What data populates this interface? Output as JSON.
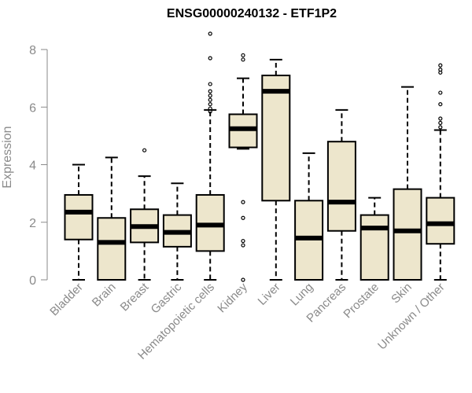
{
  "chart_data": {
    "type": "boxplot",
    "title": "ENSG00000240132 - ETF1P2",
    "ylabel": "Expression",
    "xlabel": "",
    "ylim": [
      0,
      8.6
    ],
    "yticks": [
      0,
      2,
      4,
      6,
      8
    ],
    "box_fill": "#ede6cc",
    "box_stroke": "#000000",
    "axis_color": "#8a8a8a",
    "categories": [
      "Bladder",
      "Brain",
      "Breast",
      "Gastric",
      "Hematopoietic cells",
      "Kidney",
      "Liver",
      "Lung",
      "Pancreas",
      "Prostate",
      "Skin",
      "Unknown / Other"
    ],
    "boxes": [
      {
        "whislo": 0.0,
        "q1": 1.4,
        "med": 2.35,
        "q3": 2.95,
        "whishi": 4.0,
        "fliers": []
      },
      {
        "whislo": 0.0,
        "q1": 0.0,
        "med": 1.3,
        "q3": 2.15,
        "whishi": 4.25,
        "fliers": []
      },
      {
        "whislo": 0.0,
        "q1": 1.3,
        "med": 1.85,
        "q3": 2.45,
        "whishi": 3.6,
        "fliers": [
          4.5
        ]
      },
      {
        "whislo": 0.0,
        "q1": 1.15,
        "med": 1.65,
        "q3": 2.25,
        "whishi": 3.35,
        "fliers": []
      },
      {
        "whislo": 0.0,
        "q1": 1.0,
        "med": 1.9,
        "q3": 2.95,
        "whishi": 5.9,
        "fliers": [
          5.85,
          5.95,
          6.1,
          6.25,
          6.4,
          6.55,
          6.8,
          7.7,
          8.55
        ]
      },
      {
        "whislo": 4.55,
        "q1": 4.6,
        "med": 5.25,
        "q3": 5.75,
        "whishi": 7.0,
        "fliers": [
          0.0,
          1.2,
          1.35,
          2.15,
          2.7,
          7.65,
          7.8
        ]
      },
      {
        "whislo": 0.0,
        "q1": 2.75,
        "med": 6.55,
        "q3": 7.1,
        "whishi": 7.65,
        "fliers": []
      },
      {
        "whislo": 0.0,
        "q1": 0.0,
        "med": 1.45,
        "q3": 2.75,
        "whishi": 4.4,
        "fliers": []
      },
      {
        "whislo": 0.0,
        "q1": 1.7,
        "med": 2.7,
        "q3": 4.8,
        "whishi": 5.9,
        "fliers": []
      },
      {
        "whislo": 0.0,
        "q1": 0.0,
        "med": 1.8,
        "q3": 2.25,
        "whishi": 2.85,
        "fliers": []
      },
      {
        "whislo": 0.0,
        "q1": 0.0,
        "med": 1.7,
        "q3": 3.15,
        "whishi": 6.7,
        "fliers": []
      },
      {
        "whislo": 0.0,
        "q1": 1.25,
        "med": 1.95,
        "q3": 2.85,
        "whishi": 5.2,
        "fliers": [
          5.3,
          5.45,
          5.6,
          6.1,
          6.5,
          7.2,
          7.3,
          7.45
        ]
      }
    ]
  }
}
